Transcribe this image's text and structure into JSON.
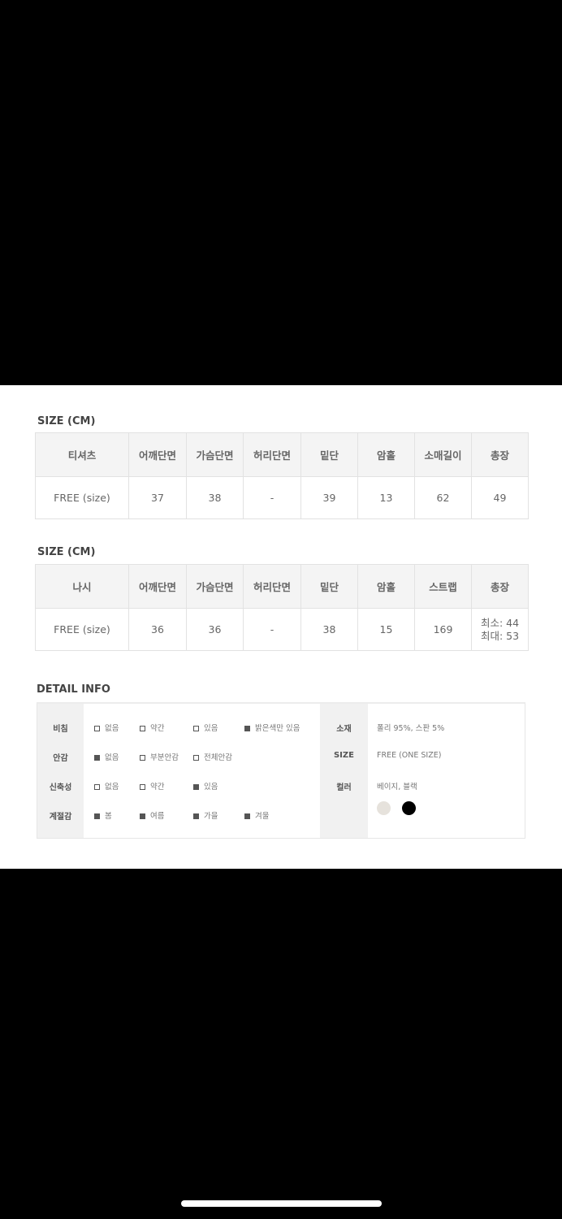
{
  "tables": [
    {
      "title": "SIZE (CM)",
      "headers": [
        "티셔츠",
        "어깨단면",
        "가슴단면",
        "허리단면",
        "밑단",
        "암홀",
        "소매길이",
        "총장"
      ],
      "row": [
        "FREE (size)",
        "37",
        "38",
        "-",
        "39",
        "13",
        "62",
        "49"
      ]
    },
    {
      "title": "SIZE (CM)",
      "headers": [
        "나시",
        "어깨단면",
        "가슴단면",
        "허리단면",
        "밑단",
        "암홀",
        "스트랩",
        "총장"
      ],
      "row": [
        "FREE (size)",
        "36",
        "36",
        "-",
        "38",
        "15",
        "169",
        "최소: 44\n최대: 53"
      ]
    }
  ],
  "detail": {
    "title": "DETAIL INFO",
    "rows": [
      {
        "label": "비침",
        "options": [
          {
            "text": "없음",
            "checked": false
          },
          {
            "text": "약간",
            "checked": false
          },
          {
            "text": "있음",
            "checked": false
          },
          {
            "text": "밝은색만 있음",
            "checked": true
          }
        ]
      },
      {
        "label": "안감",
        "options": [
          {
            "text": "없음",
            "checked": true
          },
          {
            "text": "부분안감",
            "checked": false
          },
          {
            "text": "전체안감",
            "checked": false
          }
        ]
      },
      {
        "label": "신축성",
        "options": [
          {
            "text": "없음",
            "checked": false
          },
          {
            "text": "약간",
            "checked": false
          },
          {
            "text": "있음",
            "checked": true
          }
        ]
      },
      {
        "label": "계절감",
        "options": [
          {
            "text": "봄",
            "checked": true
          },
          {
            "text": "여름",
            "checked": true
          },
          {
            "text": "가을",
            "checked": true
          },
          {
            "text": "겨울",
            "checked": true
          }
        ]
      }
    ],
    "info": [
      {
        "label": "소재",
        "value": "폴리 95%, 스판 5%"
      },
      {
        "label": "SIZE",
        "value": "FREE (ONE SIZE)"
      },
      {
        "label": "컬러",
        "value": "베이지, 블랙"
      }
    ],
    "swatches": [
      "#e6e2dc",
      "#000000"
    ]
  }
}
